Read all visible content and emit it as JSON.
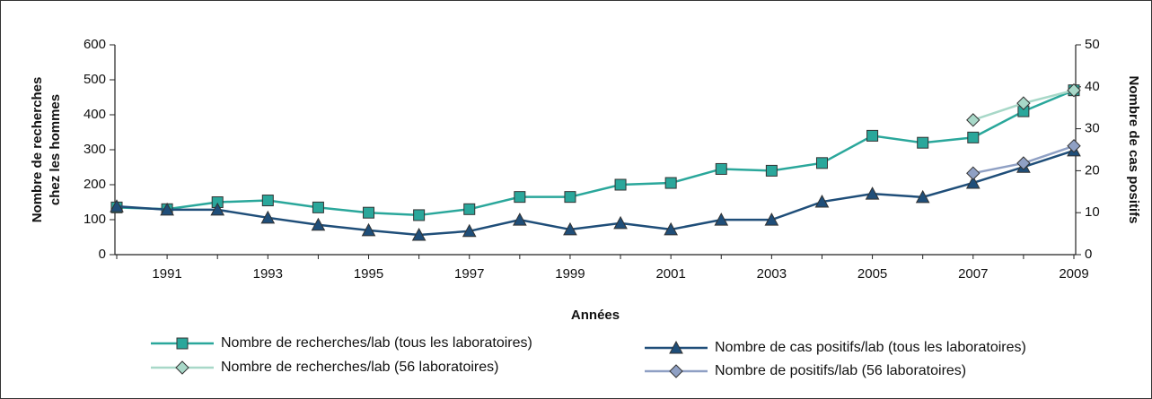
{
  "chart_data": {
    "type": "line",
    "xlabel": "Années",
    "ylabel": [
      "Nombre de recherches",
      "chez les hommes"
    ],
    "y2label": "Nombre de cas positifs",
    "categories": [
      null,
      "1991",
      null,
      "1993",
      null,
      "1995",
      null,
      "1997",
      null,
      "1999",
      null,
      "2001",
      null,
      "2003",
      null,
      "2005",
      null,
      "2007",
      null,
      "2009"
    ],
    "ylim": [
      0,
      600
    ],
    "yticks": [
      0,
      100,
      200,
      300,
      400,
      500,
      600
    ],
    "y2lim": [
      0,
      50
    ],
    "y2ticks": [
      0,
      10,
      20,
      30,
      40,
      50
    ],
    "grid": false,
    "series": [
      {
        "name": "Nombre de recherches/lab (tous les laboratoires)",
        "color": "#2aa79b",
        "marker": "square",
        "values": [
          135,
          130,
          150,
          155,
          135,
          120,
          113,
          130,
          165,
          165,
          200,
          205,
          245,
          240,
          262,
          340,
          320,
          335,
          410,
          470
        ]
      },
      {
        "name": "Nombre de recherches/lab (56 laboratoires)",
        "color": "#a8d8c8",
        "marker": "diamond",
        "values": [
          null,
          null,
          null,
          null,
          null,
          null,
          null,
          null,
          null,
          null,
          null,
          null,
          null,
          null,
          null,
          null,
          null,
          385,
          433,
          470
        ]
      },
      {
        "name": "Nombre de cas positifs/lab (tous les laboratoires)",
        "color": "#1f4e79",
        "marker": "triangle",
        "axis": "y2",
        "values": [
          11.5,
          10.7,
          10.7,
          8.8,
          7.1,
          5.8,
          4.7,
          5.6,
          8.3,
          6.0,
          7.5,
          6.0,
          8.3,
          8.3,
          12.6,
          14.5,
          13.7,
          17.1,
          20.9,
          24.8
        ]
      },
      {
        "name": "Nombre de positifs/lab (56 laboratoires)",
        "color": "#8fa0c4",
        "marker": "diamond",
        "axis": "y2",
        "values": [
          null,
          null,
          null,
          null,
          null,
          null,
          null,
          null,
          null,
          null,
          null,
          null,
          null,
          null,
          null,
          null,
          null,
          19.4,
          21.8,
          25.9
        ]
      }
    ]
  }
}
